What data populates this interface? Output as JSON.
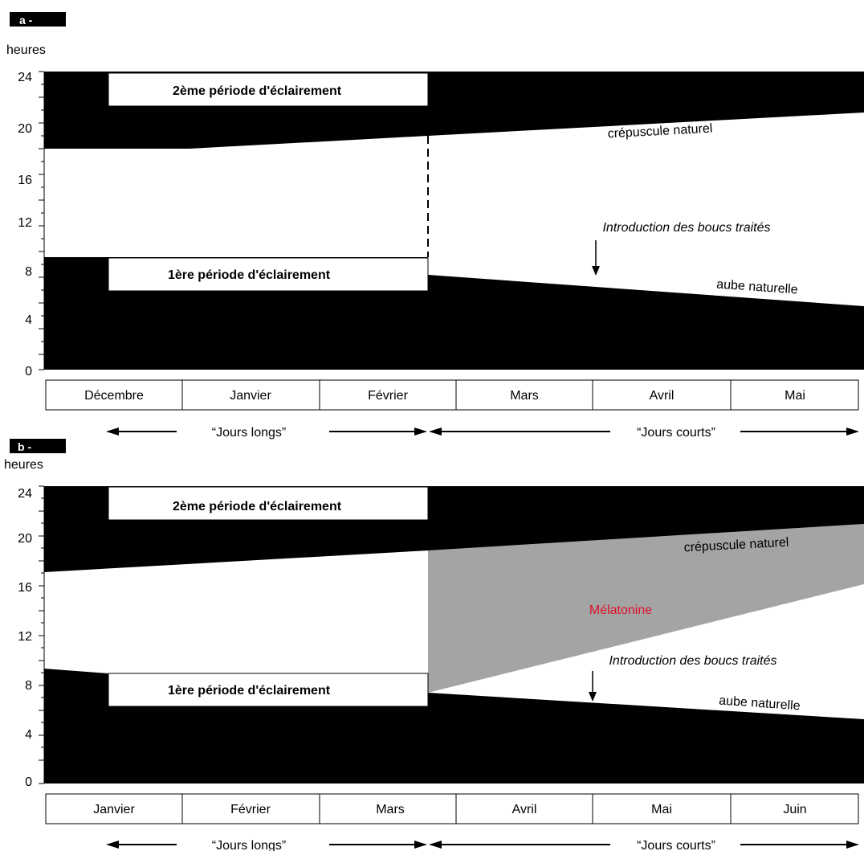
{
  "colors": {
    "dark": "#000000",
    "melatonin_fill": "#a4a4a4",
    "melatonin_text": "#e0102a",
    "white": "#ffffff"
  },
  "panel_a": {
    "label": "a -",
    "unit": "heures",
    "y_ticks": [
      "24",
      "20",
      "16",
      "12",
      "8",
      "4",
      "0"
    ],
    "lighting_2": "2ème période d'éclairement",
    "lighting_1": "1ère période d'éclairement",
    "dusk": "crépuscule naturel",
    "dawn": "aube naturelle",
    "intro": "Introduction des boucs traités",
    "months": [
      "Décembre",
      "Janvier",
      "Février",
      "Mars",
      "Avril",
      "Mai"
    ],
    "long_days": "“Jours longs”",
    "short_days": "“Jours courts”"
  },
  "panel_b": {
    "label": "b -",
    "unit": "heures",
    "y_ticks": [
      "24",
      "20",
      "16",
      "12",
      "8",
      "4",
      "0"
    ],
    "lighting_2": "2ème période d'éclairement",
    "lighting_1": "1ère période d'éclairement",
    "dusk": "crépuscule naturel",
    "dawn": "aube naturelle",
    "melatonin": "Mélatonine",
    "intro": "Introduction des boucs traités",
    "months": [
      "Janvier",
      "Février",
      "Mars",
      "Avril",
      "Mai",
      "Juin"
    ],
    "long_days": "“Jours longs”",
    "short_days": "“Jours courts”"
  }
}
